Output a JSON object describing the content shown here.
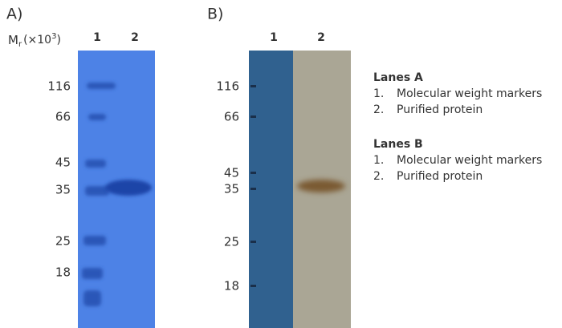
{
  "panel_a": {
    "label": "A)",
    "mr_label": {
      "main": "M",
      "sub": "r",
      "unit": "(×10",
      "sup": "3",
      "close": ")"
    },
    "lanes": [
      "1",
      "2"
    ],
    "markers": [
      "116",
      "66",
      "45",
      "35",
      "25",
      "18"
    ]
  },
  "panel_b": {
    "label": "B)",
    "lanes": [
      "1",
      "2"
    ],
    "markers": [
      "116",
      "66",
      "45",
      "35",
      "25",
      "18"
    ]
  },
  "legend": [
    {
      "title": "Lanes A",
      "items": [
        {
          "num": "1.",
          "text": "Molecular weight markers"
        },
        {
          "num": "2.",
          "text": "Purified protein"
        }
      ]
    },
    {
      "title": "Lanes B",
      "items": [
        {
          "num": "1.",
          "text": "Molecular weight markers"
        },
        {
          "num": "2.",
          "text": "Purified protein"
        }
      ]
    }
  ]
}
